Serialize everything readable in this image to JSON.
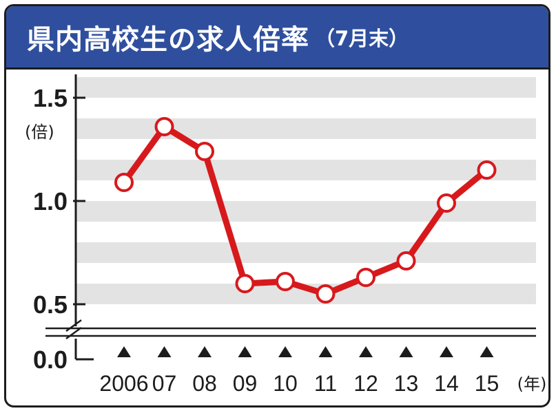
{
  "title": "県内高校生の求人倍率",
  "subtitle": "（7月末）",
  "colors": {
    "title_bg": "#2f4f9e",
    "line": "#d7191c",
    "marker_fill": "#ffffff",
    "stripe": "#e3e3e3",
    "axis": "#1c1c1c"
  },
  "chart_data": {
    "type": "line",
    "categories": [
      "2006",
      "07",
      "08",
      "09",
      "10",
      "11",
      "12",
      "13",
      "14",
      "15"
    ],
    "series": [
      {
        "values": [
          1.09,
          1.36,
          1.24,
          0.6,
          0.61,
          0.55,
          0.63,
          0.71,
          0.99,
          1.15
        ]
      }
    ],
    "title": "県内高校生の求人倍率",
    "subtitle": "（7月末）",
    "ylabel_unit": "(倍)",
    "xlabel_unit": "(年)",
    "ylim": [
      0.5,
      1.5
    ],
    "yticks": [
      "1.5",
      "1.0",
      "0.5",
      "0.0"
    ],
    "axis_break": true,
    "grid": "horizontal stripes",
    "markers": "hollow circles",
    "x_markers": "triangles"
  }
}
